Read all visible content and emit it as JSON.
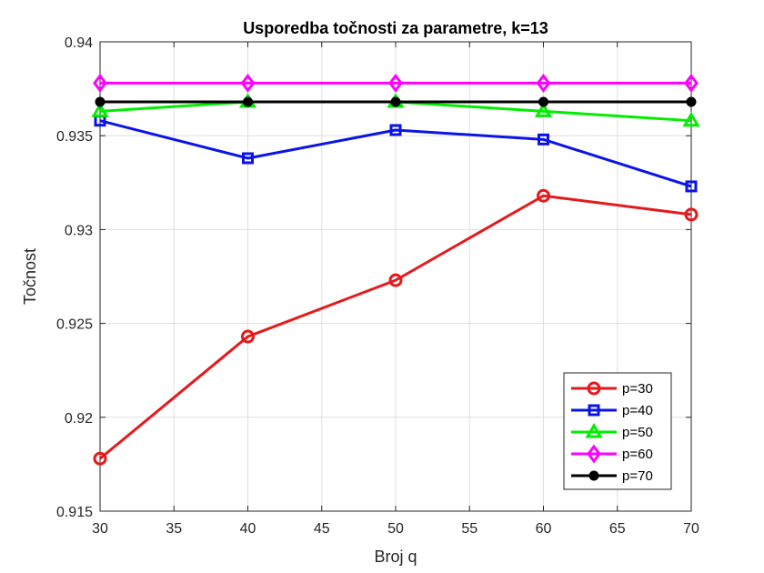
{
  "chart_data": {
    "type": "line",
    "title": "Usporedba točnosti za parametre, k=13",
    "xlabel": "Broj q",
    "ylabel": "Točnost",
    "x": [
      30,
      40,
      50,
      60,
      70
    ],
    "xlim": [
      30,
      70
    ],
    "ylim": [
      0.915,
      0.94
    ],
    "xticks": [
      30,
      35,
      40,
      45,
      50,
      55,
      60,
      65,
      70
    ],
    "xtick_labels": [
      "30",
      "35",
      "40",
      "45",
      "50",
      "55",
      "60",
      "65",
      "70"
    ],
    "yticks": [
      0.915,
      0.92,
      0.925,
      0.93,
      0.935,
      0.94
    ],
    "ytick_labels": [
      "0.915",
      "0.92",
      "0.925",
      "0.93",
      "0.935",
      "0.94"
    ],
    "grid": true,
    "legend_position": "bottom-right",
    "series": [
      {
        "name": "p=30",
        "values": [
          0.9178,
          0.9243,
          0.9273,
          0.9318,
          0.9308
        ],
        "color": "#e41a1c",
        "marker": "circle"
      },
      {
        "name": "p=40",
        "values": [
          0.9358,
          0.9338,
          0.9353,
          0.9348,
          0.9323
        ],
        "color": "#0a14e6",
        "marker": "square"
      },
      {
        "name": "p=50",
        "values": [
          0.9363,
          0.9368,
          0.9368,
          0.9363,
          0.9358
        ],
        "color": "#00ee00",
        "marker": "triangle"
      },
      {
        "name": "p=60",
        "values": [
          0.9378,
          0.9378,
          0.9378,
          0.9378,
          0.9378
        ],
        "color": "#ff00ff",
        "marker": "diamond"
      },
      {
        "name": "p=70",
        "values": [
          0.9368,
          0.9368,
          0.9368,
          0.9368,
          0.9368
        ],
        "color": "#000000",
        "marker": "dot"
      }
    ]
  }
}
